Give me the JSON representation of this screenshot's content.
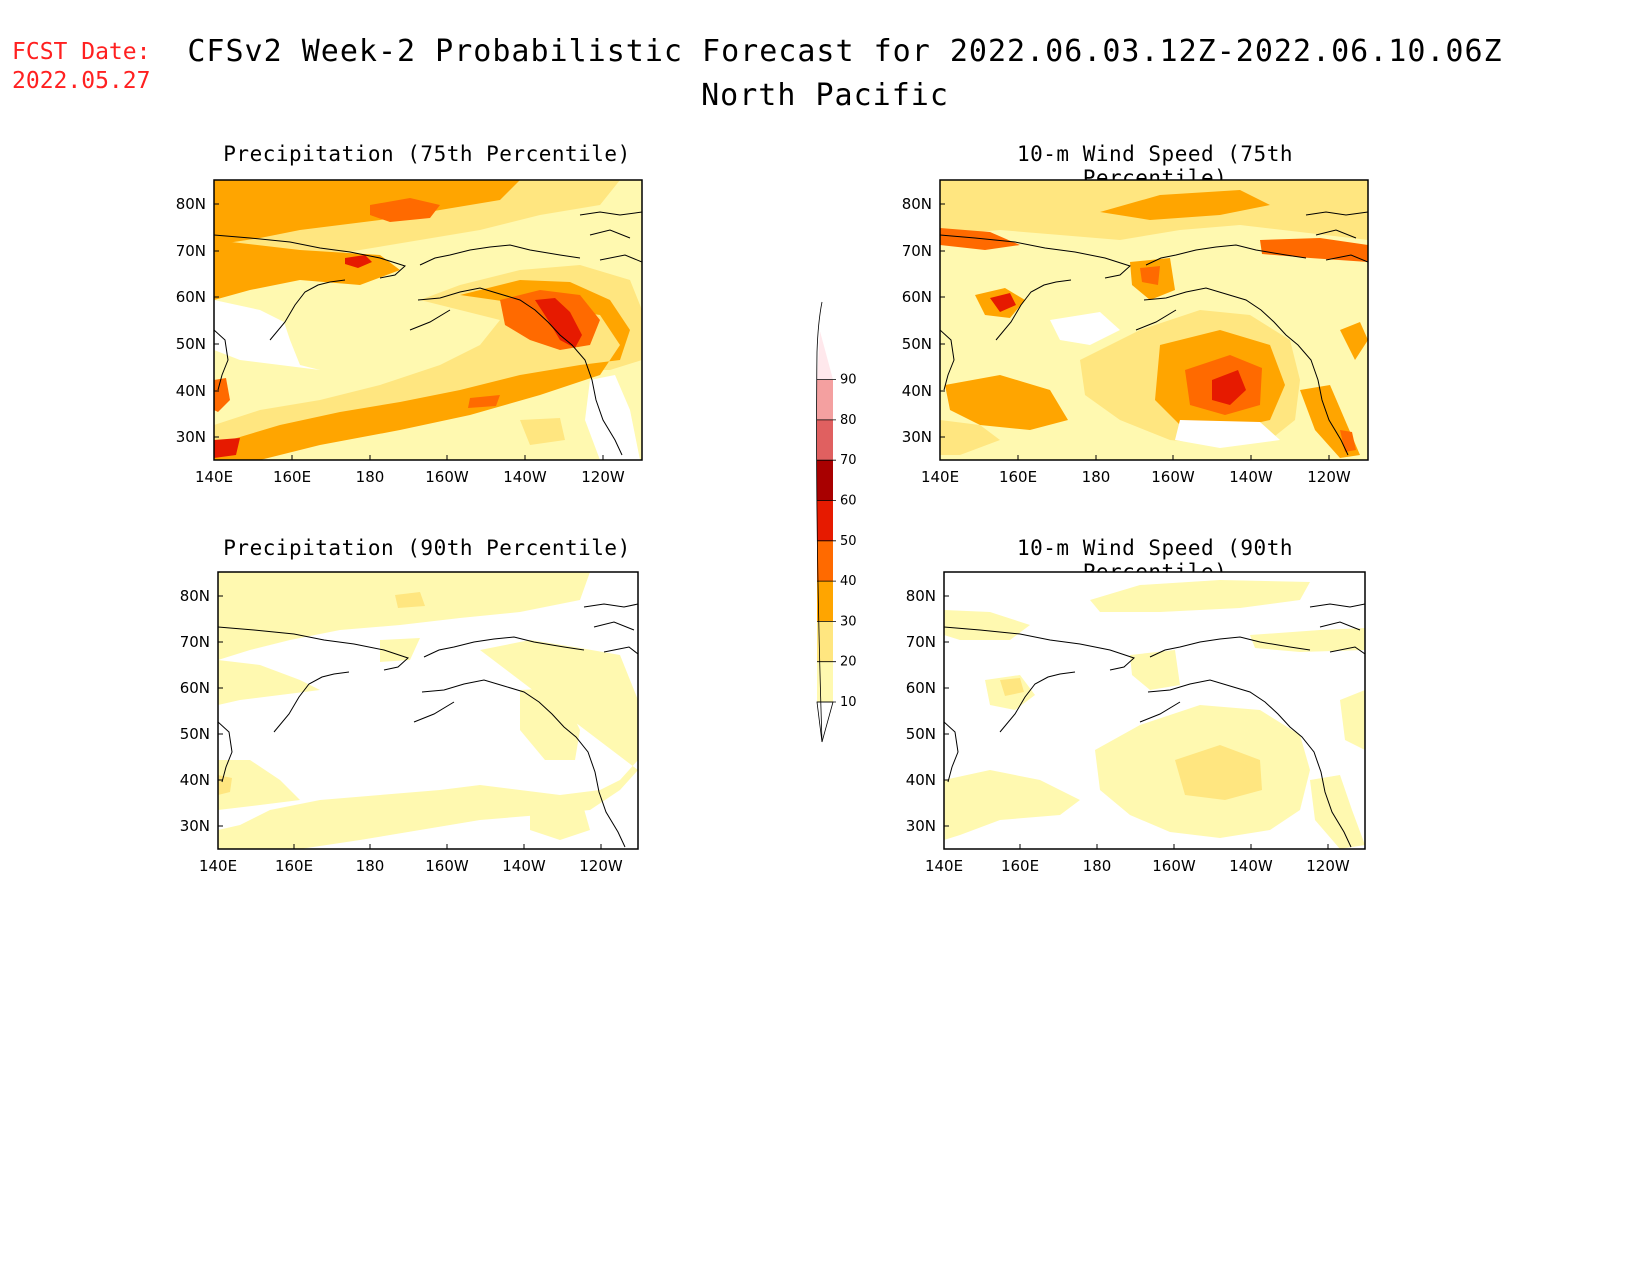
{
  "header": {
    "fcst_label": "FCST Date:",
    "fcst_date": "2022.05.27",
    "title_line1": "CFSv2 Week-2 Probabilistic Forecast for 2022.06.03.12Z-2022.06.10.06Z",
    "title_line2": "North Pacific"
  },
  "panels": [
    {
      "title": "Precipitation (75th Percentile)"
    },
    {
      "title": "10-m Wind Speed (75th Percentile)"
    },
    {
      "title": "Precipitation (90th Percentile)"
    },
    {
      "title": "10-m Wind Speed (90th Percentile)"
    }
  ],
  "axes": {
    "x_ticks": [
      "140E",
      "160E",
      "180",
      "160W",
      "140W",
      "120W"
    ],
    "y_ticks": [
      "80N",
      "70N",
      "60N",
      "50N",
      "40N",
      "30N"
    ]
  },
  "colorbar": {
    "levels": [
      "10",
      "20",
      "30",
      "40",
      "50",
      "60",
      "70",
      "80",
      "90"
    ],
    "colors": [
      "#fff9b0",
      "#ffe680",
      "#ffa500",
      "#ff6a00",
      "#e61a00",
      "#a80000",
      "#e06060",
      "#f4a0a0",
      "#ffe8ec"
    ]
  }
}
